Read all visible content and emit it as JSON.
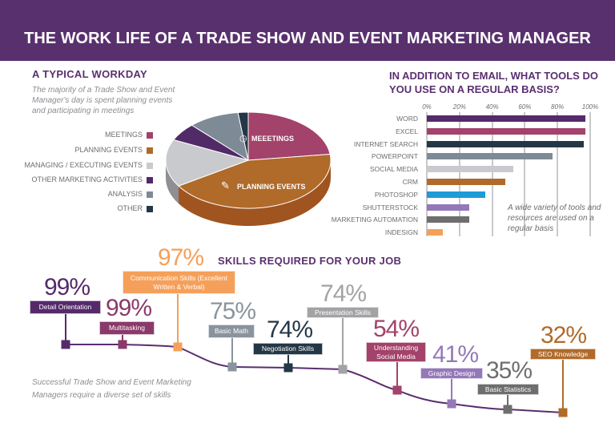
{
  "title": "THE WORK LIFE OF A TRADE SHOW AND EVENT MARKETING MANAGER",
  "colors": {
    "purple": "#59306e",
    "meetings": "#a3426a",
    "planning": "#b06a2a",
    "managing": "#c9cacd",
    "other_marketing": "#522a68",
    "analysis": "#7e8b96",
    "other": "#243746"
  },
  "chart_data": [
    {
      "type": "pie",
      "title": "A TYPICAL WORKDAY",
      "subtitle": "The majority of a Trade Show and Event Manager's day is spent planning events and participating in meetings",
      "labels": [
        "MEETINGS",
        "PLANNING EVENTS",
        "MANAGING / EXECUTING EVENTS",
        "OTHER MARKETING ACTIVITIES",
        "ANALYSIS",
        "OTHER"
      ],
      "values": [
        23,
        43,
        16,
        6,
        10,
        2
      ],
      "slice_labels": {
        "meetings": "MEEETINGS",
        "planning": "PLANNING EVENTS"
      },
      "legend": "left"
    },
    {
      "type": "bar",
      "orientation": "horizontal",
      "title": "IN ADDITION TO EMAIL, WHAT TOOLS DO YOU USE ON A REGULAR BASIS?",
      "categories": [
        "WORD",
        "EXCEL",
        "INTERNET SEARCH",
        "POWERPOINT",
        "SOCIAL MEDIA",
        "CRM",
        "PHOTOSHOP",
        "SHUTTERSTOCK",
        "MARKETING AUTOMATION",
        "INDESIGN"
      ],
      "values": [
        97,
        97,
        96,
        77,
        53,
        48,
        36,
        26,
        26,
        10
      ],
      "bar_colors": [
        "#552a6b",
        "#a3426a",
        "#243746",
        "#7e8b96",
        "#c9cacd",
        "#b06a2a",
        "#1f9bd7",
        "#9478b8",
        "#6e6e6e",
        "#f5a05a"
      ],
      "xticks": [
        "0%",
        "20%",
        "40%",
        "60%",
        "80%",
        "100%"
      ],
      "xlim": [
        0,
        100
      ],
      "grid": true,
      "annotation": "A wide variety of tools and resources are used on a regular basis"
    },
    {
      "type": "line",
      "title": "SKILLS REQUIRED FOR YOUR JOB",
      "categories": [
        "Detail Orientation",
        "Multitasking",
        "Communication Skills (Excellent Written & Verbal)",
        "Basic Math",
        "Negotiation Skills",
        "Presentation Skills",
        "Understanding Social Media",
        "Graphic Design",
        "Basic Statistics",
        "SEO Knowledge"
      ],
      "values": [
        99,
        99,
        97,
        75,
        74,
        74,
        54,
        41,
        35,
        32
      ],
      "labels": [
        "99%",
        "99%",
        "97%",
        "75%",
        "74%",
        "74%",
        "54%",
        "41%",
        "35%",
        "32%"
      ],
      "label_colors": [
        "#552a6b",
        "#8a3a6a",
        "#f5a05a",
        "#8b949c",
        "#243746",
        "#a3a3a6",
        "#a3426a",
        "#9478b8",
        "#6e6e6e",
        "#b06a2a"
      ],
      "annotation": "Successful Trade Show and Event Marketing Managers require a diverse set of skills"
    }
  ]
}
